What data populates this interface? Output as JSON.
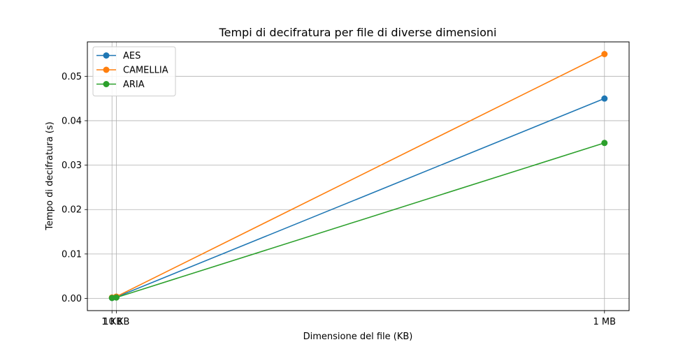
{
  "chart_data": {
    "type": "line",
    "title": "Tempi di decifratura per file di diverse dimensioni",
    "xlabel": "Dimensione del file (KB)",
    "ylabel": "Tempo di decifratura (s)",
    "x": [
      1,
      10,
      1024
    ],
    "xticks": [
      {
        "value": 1,
        "label": "1 KB"
      },
      {
        "value": 10,
        "label": "10 KB"
      },
      {
        "value": 1024,
        "label": "1 MB"
      }
    ],
    "xlim": [
      -50.15,
      1075.15
    ],
    "ylim": [
      -0.00275,
      0.05775
    ],
    "yticks": [
      {
        "value": 0.0,
        "label": "0.00"
      },
      {
        "value": 0.01,
        "label": "0.01"
      },
      {
        "value": 0.02,
        "label": "0.02"
      },
      {
        "value": 0.03,
        "label": "0.03"
      },
      {
        "value": 0.04,
        "label": "0.04"
      },
      {
        "value": 0.05,
        "label": "0.05"
      }
    ],
    "grid": true,
    "legend_position": "top-left",
    "series": [
      {
        "name": "AES",
        "color": "#1f77b4",
        "values": [
          0.0001,
          0.0003,
          0.045
        ]
      },
      {
        "name": "CAMELLIA",
        "color": "#ff7f0e",
        "values": [
          0.0002,
          0.0004,
          0.055
        ]
      },
      {
        "name": "ARIA",
        "color": "#2ca02c",
        "values": [
          0.0001,
          0.0002,
          0.035
        ]
      }
    ]
  }
}
